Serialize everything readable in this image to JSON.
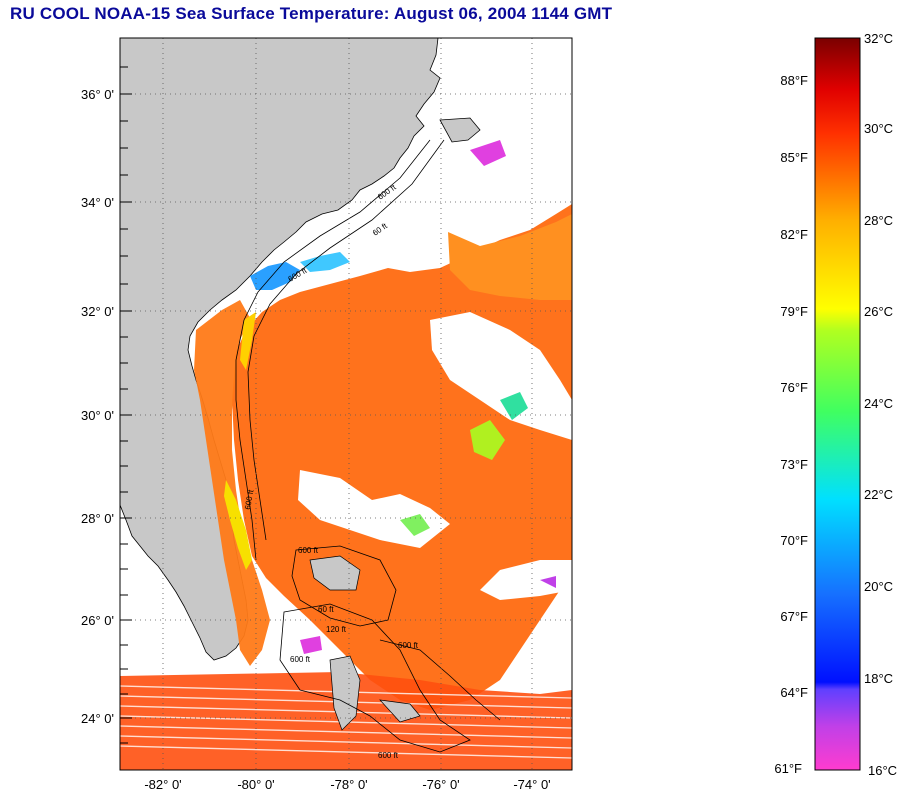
{
  "title": "RU COOL  NOAA-15  Sea Surface Temperature:  August 06, 2004 1144 GMT",
  "latitude_labels": [
    "36° 0'",
    "34° 0'",
    "32° 0'",
    "30° 0'",
    "28° 0'",
    "26° 0'",
    "24° 0'"
  ],
  "longitude_labels": [
    "-82° 0'",
    "-80° 0'",
    "-78° 0'",
    "-76° 0'",
    "-74° 0'"
  ],
  "depth_labels": [
    "600 ft",
    "60 ft",
    "600 ft",
    "600 ft",
    "600 ft",
    "60 ft",
    "120 ft",
    "600 ft",
    "600 ft",
    "600 ft"
  ],
  "colorbar": {
    "fahrenheit_labels": [
      "88°F",
      "85°F",
      "82°F",
      "79°F",
      "76°F",
      "73°F",
      "70°F",
      "67°F",
      "64°F",
      "61°F"
    ],
    "celsius_labels": [
      "32°C",
      "30°C",
      "28°C",
      "26°C",
      "24°C",
      "22°C",
      "20°C",
      "18°C",
      "16°C"
    ]
  },
  "colors": {
    "title": "#0a0a9a",
    "land": "#c8c8c8",
    "sst_warm": "#ff6a10",
    "sst_cool": "#1e90ff"
  }
}
